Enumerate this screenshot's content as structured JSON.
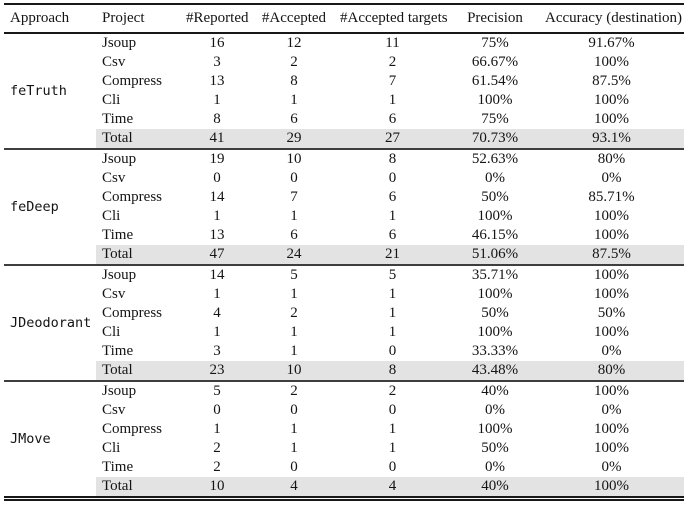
{
  "table": {
    "headers": [
      "Approach",
      "Project",
      "#Reported",
      "#Accepted",
      "#Accepted targets",
      "Precision",
      "Accuracy (destination)"
    ],
    "sections": [
      {
        "approach": "feTruth",
        "rows": [
          {
            "project": "Jsoup",
            "reported": "16",
            "accepted": "12",
            "accepted_targets": "11",
            "precision": "75%",
            "accuracy": "91.67%"
          },
          {
            "project": "Csv",
            "reported": "3",
            "accepted": "2",
            "accepted_targets": "2",
            "precision": "66.67%",
            "accuracy": "100%"
          },
          {
            "project": "Compress",
            "reported": "13",
            "accepted": "8",
            "accepted_targets": "7",
            "precision": "61.54%",
            "accuracy": "87.5%"
          },
          {
            "project": "Cli",
            "reported": "1",
            "accepted": "1",
            "accepted_targets": "1",
            "precision": "100%",
            "accuracy": "100%"
          },
          {
            "project": "Time",
            "reported": "8",
            "accepted": "6",
            "accepted_targets": "6",
            "precision": "75%",
            "accuracy": "100%"
          },
          {
            "project": "Total",
            "reported": "41",
            "accepted": "29",
            "accepted_targets": "27",
            "precision": "70.73%",
            "accuracy": "93.1%"
          }
        ]
      },
      {
        "approach": "feDeep",
        "rows": [
          {
            "project": "Jsoup",
            "reported": "19",
            "accepted": "10",
            "accepted_targets": "8",
            "precision": "52.63%",
            "accuracy": "80%"
          },
          {
            "project": "Csv",
            "reported": "0",
            "accepted": "0",
            "accepted_targets": "0",
            "precision": "0%",
            "accuracy": "0%"
          },
          {
            "project": "Compress",
            "reported": "14",
            "accepted": "7",
            "accepted_targets": "6",
            "precision": "50%",
            "accuracy": "85.71%"
          },
          {
            "project": "Cli",
            "reported": "1",
            "accepted": "1",
            "accepted_targets": "1",
            "precision": "100%",
            "accuracy": "100%"
          },
          {
            "project": "Time",
            "reported": "13",
            "accepted": "6",
            "accepted_targets": "6",
            "precision": "46.15%",
            "accuracy": "100%"
          },
          {
            "project": "Total",
            "reported": "47",
            "accepted": "24",
            "accepted_targets": "21",
            "precision": "51.06%",
            "accuracy": "87.5%"
          }
        ]
      },
      {
        "approach": "JDeodorant",
        "rows": [
          {
            "project": "Jsoup",
            "reported": "14",
            "accepted": "5",
            "accepted_targets": "5",
            "precision": "35.71%",
            "accuracy": "100%"
          },
          {
            "project": "Csv",
            "reported": "1",
            "accepted": "1",
            "accepted_targets": "1",
            "precision": "100%",
            "accuracy": "100%"
          },
          {
            "project": "Compress",
            "reported": "4",
            "accepted": "2",
            "accepted_targets": "1",
            "precision": "50%",
            "accuracy": "50%"
          },
          {
            "project": "Cli",
            "reported": "1",
            "accepted": "1",
            "accepted_targets": "1",
            "precision": "100%",
            "accuracy": "100%"
          },
          {
            "project": "Time",
            "reported": "3",
            "accepted": "1",
            "accepted_targets": "0",
            "precision": "33.33%",
            "accuracy": "0%"
          },
          {
            "project": "Total",
            "reported": "23",
            "accepted": "10",
            "accepted_targets": "8",
            "precision": "43.48%",
            "accuracy": "80%"
          }
        ]
      },
      {
        "approach": "JMove",
        "rows": [
          {
            "project": "Jsoup",
            "reported": "5",
            "accepted": "2",
            "accepted_targets": "2",
            "precision": "40%",
            "accuracy": "100%"
          },
          {
            "project": "Csv",
            "reported": "0",
            "accepted": "0",
            "accepted_targets": "0",
            "precision": "0%",
            "accuracy": "0%"
          },
          {
            "project": "Compress",
            "reported": "1",
            "accepted": "1",
            "accepted_targets": "1",
            "precision": "100%",
            "accuracy": "100%"
          },
          {
            "project": "Cli",
            "reported": "2",
            "accepted": "1",
            "accepted_targets": "1",
            "precision": "50%",
            "accuracy": "100%"
          },
          {
            "project": "Time",
            "reported": "2",
            "accepted": "0",
            "accepted_targets": "0",
            "precision": "0%",
            "accuracy": "0%"
          },
          {
            "project": "Total",
            "reported": "10",
            "accepted": "4",
            "accepted_targets": "4",
            "precision": "40%",
            "accuracy": "100%"
          }
        ]
      }
    ]
  },
  "colors": {
    "total_row_bg": "#e3e3e3",
    "rule_dark": "#181818",
    "rule_section": "#3e3e3e",
    "text": "#141414"
  }
}
